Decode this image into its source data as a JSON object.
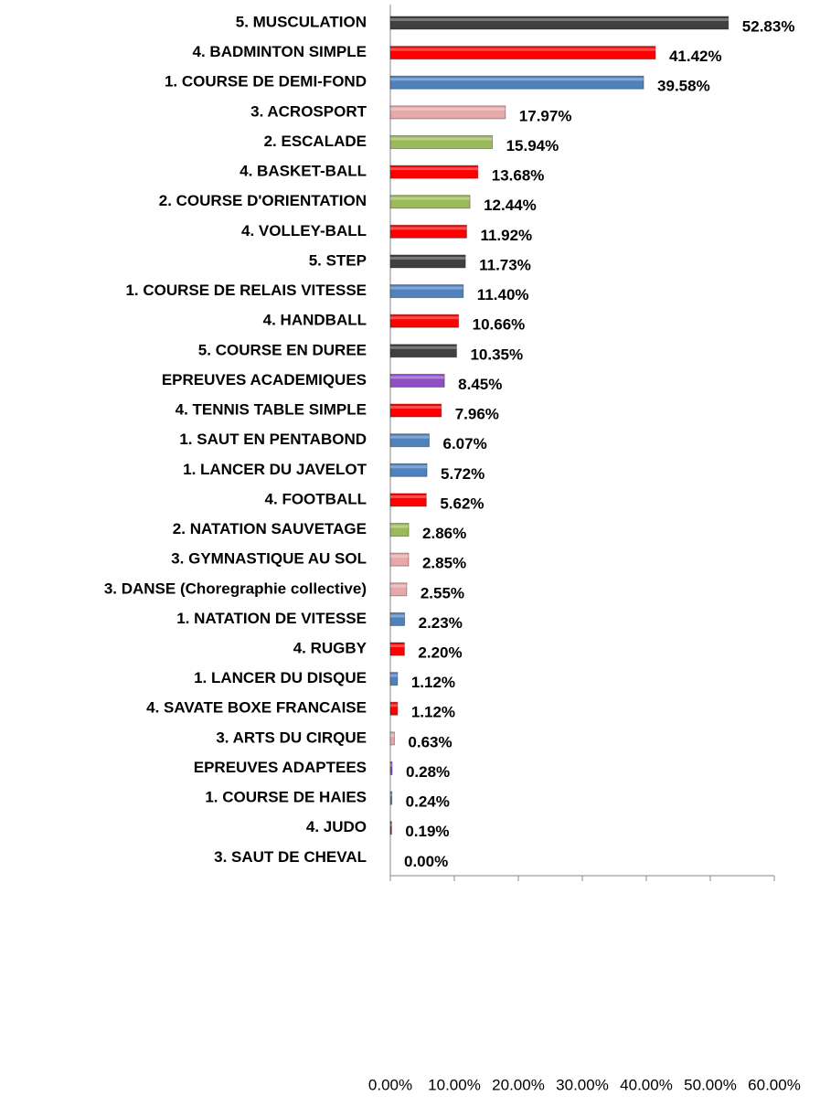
{
  "chart_data": {
    "type": "hbar",
    "categories": [
      "5. MUSCULATION",
      "4. BADMINTON SIMPLE",
      "1. COURSE DE DEMI-FOND",
      "3. ACROSPORT",
      "2. ESCALADE",
      "4. BASKET-BALL",
      "2. COURSE D'ORIENTATION",
      "4. VOLLEY-BALL",
      "5. STEP",
      "1. COURSE DE RELAIS VITESSE",
      "4. HANDBALL",
      "5. COURSE EN DUREE",
      "EPREUVES ACADEMIQUES",
      "4. TENNIS TABLE SIMPLE",
      "1. SAUT EN PENTABOND",
      "1. LANCER DU JAVELOT",
      "4. FOOTBALL",
      "2. NATATION SAUVETAGE",
      "3. GYMNASTIQUE AU SOL",
      "3. DANSE (Choregraphie collective)",
      "1. NATATION DE VITESSE",
      "4. RUGBY",
      "1. LANCER DU DISQUE",
      "4. SAVATE BOXE FRANCAISE",
      "3. ARTS DU CIRQUE",
      "EPREUVES ADAPTEES",
      "1. COURSE DE HAIES",
      "4. JUDO",
      "3. SAUT DE CHEVAL"
    ],
    "values": [
      52.83,
      41.42,
      39.58,
      17.97,
      15.94,
      13.68,
      12.44,
      11.92,
      11.73,
      11.4,
      10.66,
      10.35,
      8.45,
      7.96,
      6.07,
      5.72,
      5.62,
      2.86,
      2.85,
      2.55,
      2.23,
      2.2,
      1.12,
      1.12,
      0.63,
      0.28,
      0.24,
      0.19,
      0.0
    ],
    "value_labels": [
      "52.83%",
      "41.42%",
      "39.58%",
      "17.97%",
      "15.94%",
      "13.68%",
      "12.44%",
      "11.92%",
      "11.73%",
      "11.40%",
      "10.66%",
      "10.35%",
      "8.45%",
      "7.96%",
      "6.07%",
      "5.72%",
      "5.62%",
      "2.86%",
      "2.85%",
      "2.55%",
      "2.23%",
      "2.20%",
      "1.12%",
      "1.12%",
      "0.63%",
      "0.28%",
      "0.24%",
      "0.19%",
      "0.00%"
    ],
    "colors": [
      "#404040",
      "#ff0000",
      "#4f81bd",
      "#e6a8a8",
      "#9bbb59",
      "#ff0000",
      "#9bbb59",
      "#ff0000",
      "#404040",
      "#4f81bd",
      "#ff0000",
      "#404040",
      "#8e4fc4",
      "#ff0000",
      "#4f81bd",
      "#4f81bd",
      "#ff0000",
      "#9bbb59",
      "#e6a8a8",
      "#e6a8a8",
      "#4f81bd",
      "#ff0000",
      "#4f81bd",
      "#ff0000",
      "#e6a8a8",
      "#8e4fc4",
      "#4f81bd",
      "#ff0000",
      "#e6a8a8"
    ],
    "xlim": [
      0,
      60
    ],
    "xticks": [
      {
        "value": 0,
        "label": "0.00%"
      },
      {
        "value": 10,
        "label": "10.00%"
      },
      {
        "value": 20,
        "label": "20.00%"
      },
      {
        "value": 30,
        "label": "30.00%"
      },
      {
        "value": 40,
        "label": "40.00%"
      },
      {
        "value": 50,
        "label": "50.00%"
      },
      {
        "value": 60,
        "label": "60.00%"
      }
    ]
  }
}
